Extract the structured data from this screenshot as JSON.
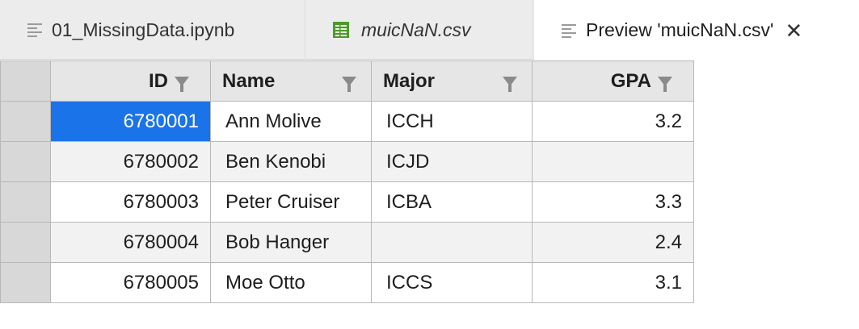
{
  "tabs": [
    {
      "label": "01_MissingData.ipynb",
      "icon": "notebook-lines-icon"
    },
    {
      "label": "muicNaN.csv",
      "icon": "csv-grid-icon"
    },
    {
      "label": "Preview 'muicNaN.csv'",
      "icon": "document-lines-icon",
      "close": "✕"
    }
  ],
  "table": {
    "columns": [
      "ID",
      "Name",
      "Major",
      "GPA"
    ],
    "rows": [
      {
        "id": "6780001",
        "name": "Ann Molive",
        "major": "ICCH",
        "gpa": "3.2"
      },
      {
        "id": "6780002",
        "name": "Ben Kenobi",
        "major": "ICJD",
        "gpa": ""
      },
      {
        "id": "6780003",
        "name": "Peter Cruiser",
        "major": "ICBA",
        "gpa": "3.3"
      },
      {
        "id": "6780004",
        "name": "Bob Hanger",
        "major": "",
        "gpa": "2.4"
      },
      {
        "id": "6780005",
        "name": "Moe Otto",
        "major": "ICCS",
        "gpa": "3.1"
      }
    ]
  },
  "colors": {
    "selection": "#1a73e8",
    "csv_icon": "#4c9a2a",
    "tabbar": "#ececec"
  }
}
